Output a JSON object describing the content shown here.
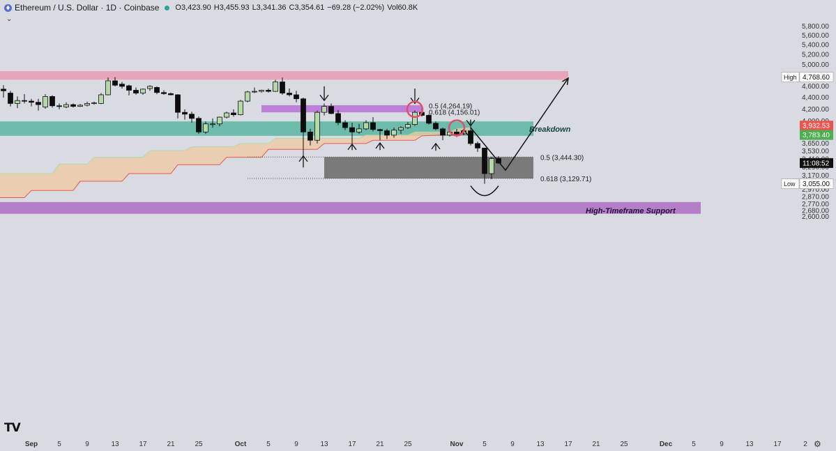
{
  "header": {
    "symbol": "Ethereum / U.S. Dollar · 1D · Coinbase",
    "open": "O3,423.90",
    "high": "H3,455.93",
    "low": "L3,341.36",
    "close": "C3,354.61",
    "change": "−69.28 (−2.02%)",
    "volume": "Vol60.8K",
    "coin_icon": "ethereum-icon",
    "collapse_icon": "chevron-down-icon"
  },
  "logo": "TV",
  "settings_icon": "gear-icon",
  "colors": {
    "up": "#b5d8a8",
    "down": "#0d0d0d",
    "resistance_zone": "#e8a4b8",
    "breakdown_zone": "#5bb5a0",
    "htf_support": "#b47fc9",
    "fib_box": "#7a7a7a",
    "cloud": "#f0c9a0",
    "cloud_edge": "#ef5350",
    "current_price_label": "#ef5350",
    "green_label": "#4caf50"
  },
  "chart_data": {
    "type": "candlestick",
    "title": "Ethereum / U.S. Dollar · 1D · Coinbase",
    "ylim": [
      2550,
      5850
    ],
    "y_ticks": [
      2600,
      2680,
      2770,
      2870,
      2970,
      3055,
      3170,
      3290,
      3410,
      3530,
      3650,
      3783.4,
      4000,
      4200,
      4400,
      4600,
      4800,
      5000,
      5200,
      5400,
      5600,
      5800
    ],
    "y_tick_labels": [
      "2,600.00",
      "2,680.00",
      "2,770.00",
      "2,870.00",
      "2,970.00",
      "",
      "3,170.00",
      "3,290.00",
      "3,410.00",
      "3,530.00",
      "3,650.00",
      "",
      "4,000.00",
      "4,200.00",
      "4,400.00",
      "4,600.00",
      "",
      "5,000.00",
      "5,200.00",
      "5,400.00",
      "5,600.00",
      "5,800.00"
    ],
    "x_labels": [
      "Sep",
      "5",
      "9",
      "13",
      "17",
      "21",
      "25",
      "Oct",
      "5",
      "9",
      "13",
      "17",
      "21",
      "25",
      "Nov",
      "5",
      "9",
      "13",
      "17",
      "21",
      "25",
      "Dec",
      "5",
      "9",
      "13",
      "17",
      "2"
    ],
    "x_label_days": [
      0,
      4,
      8,
      12,
      16,
      20,
      24,
      30,
      34,
      38,
      42,
      46,
      50,
      54,
      61,
      65,
      69,
      73,
      77,
      81,
      85,
      91,
      95,
      99,
      103,
      107,
      111
    ],
    "price_labels": [
      {
        "text": "High",
        "value_text": "4,768.60",
        "value": 4768.6,
        "style": "outline"
      },
      {
        "text": "",
        "value_text": "3,932.53",
        "value": 3932.53,
        "style": "red"
      },
      {
        "text": "",
        "value_text": "3,783.40",
        "value": 3783.4,
        "style": "green"
      },
      {
        "text": "",
        "value_text": "11:08:52",
        "value": 3354.61,
        "style": "dark"
      },
      {
        "text": "Low",
        "value_text": "3,055.00",
        "value": 3055,
        "style": "outline"
      }
    ],
    "candles": [
      {
        "d": -4,
        "o": 4550,
        "h": 4620,
        "l": 4400,
        "c": 4520
      },
      {
        "d": -3,
        "o": 4480,
        "h": 4520,
        "l": 4250,
        "c": 4300
      },
      {
        "d": -2,
        "o": 4300,
        "h": 4420,
        "l": 4220,
        "c": 4350
      },
      {
        "d": -1,
        "o": 4350,
        "h": 4460,
        "l": 4300,
        "c": 4340
      },
      {
        "d": 0,
        "o": 4340,
        "h": 4380,
        "l": 4250,
        "c": 4320
      },
      {
        "d": 1,
        "o": 4320,
        "h": 4380,
        "l": 4180,
        "c": 4280
      },
      {
        "d": 2,
        "o": 4240,
        "h": 4460,
        "l": 4210,
        "c": 4420
      },
      {
        "d": 3,
        "o": 4420,
        "h": 4440,
        "l": 4230,
        "c": 4260
      },
      {
        "d": 4,
        "o": 4260,
        "h": 4300,
        "l": 4200,
        "c": 4250
      },
      {
        "d": 5,
        "o": 4240,
        "h": 4320,
        "l": 4220,
        "c": 4280
      },
      {
        "d": 6,
        "o": 4280,
        "h": 4300,
        "l": 4230,
        "c": 4250
      },
      {
        "d": 7,
        "o": 4250,
        "h": 4290,
        "l": 4240,
        "c": 4270
      },
      {
        "d": 8,
        "o": 4270,
        "h": 4330,
        "l": 4250,
        "c": 4300
      },
      {
        "d": 9,
        "o": 4300,
        "h": 4330,
        "l": 4280,
        "c": 4310
      },
      {
        "d": 10,
        "o": 4300,
        "h": 4480,
        "l": 4290,
        "c": 4450
      },
      {
        "d": 11,
        "o": 4450,
        "h": 4760,
        "l": 4440,
        "c": 4700
      },
      {
        "d": 12,
        "o": 4700,
        "h": 4768.6,
        "l": 4600,
        "c": 4620
      },
      {
        "d": 13,
        "o": 4640,
        "h": 4680,
        "l": 4560,
        "c": 4600
      },
      {
        "d": 14,
        "o": 4610,
        "h": 4630,
        "l": 4440,
        "c": 4530
      },
      {
        "d": 15,
        "o": 4530,
        "h": 4580,
        "l": 4450,
        "c": 4480
      },
      {
        "d": 16,
        "o": 4480,
        "h": 4560,
        "l": 4450,
        "c": 4550
      },
      {
        "d": 17,
        "o": 4560,
        "h": 4620,
        "l": 4520,
        "c": 4600
      },
      {
        "d": 18,
        "o": 4580,
        "h": 4600,
        "l": 4460,
        "c": 4490
      },
      {
        "d": 19,
        "o": 4490,
        "h": 4530,
        "l": 4450,
        "c": 4470
      },
      {
        "d": 20,
        "o": 4470,
        "h": 4490,
        "l": 4440,
        "c": 4450
      },
      {
        "d": 21,
        "o": 4450,
        "h": 4460,
        "l": 4050,
        "c": 4150
      },
      {
        "d": 22,
        "o": 4150,
        "h": 4200,
        "l": 4030,
        "c": 4120
      },
      {
        "d": 23,
        "o": 4120,
        "h": 4160,
        "l": 3980,
        "c": 4050
      },
      {
        "d": 24,
        "o": 4050,
        "h": 4080,
        "l": 3800,
        "c": 3830
      },
      {
        "d": 25,
        "o": 3830,
        "h": 4000,
        "l": 3800,
        "c": 3960
      },
      {
        "d": 26,
        "o": 3960,
        "h": 4050,
        "l": 3900,
        "c": 3960
      },
      {
        "d": 27,
        "o": 3960,
        "h": 4080,
        "l": 3920,
        "c": 4070
      },
      {
        "d": 28,
        "o": 4070,
        "h": 4160,
        "l": 4050,
        "c": 4140
      },
      {
        "d": 29,
        "o": 4140,
        "h": 4200,
        "l": 4080,
        "c": 4110
      },
      {
        "d": 30,
        "o": 4110,
        "h": 4360,
        "l": 4100,
        "c": 4340
      },
      {
        "d": 31,
        "o": 4340,
        "h": 4520,
        "l": 4320,
        "c": 4500
      },
      {
        "d": 32,
        "o": 4500,
        "h": 4580,
        "l": 4480,
        "c": 4510
      },
      {
        "d": 33,
        "o": 4510,
        "h": 4540,
        "l": 4490,
        "c": 4530
      },
      {
        "d": 34,
        "o": 4530,
        "h": 4560,
        "l": 4490,
        "c": 4510
      },
      {
        "d": 35,
        "o": 4510,
        "h": 4720,
        "l": 4500,
        "c": 4680
      },
      {
        "d": 36,
        "o": 4680,
        "h": 4760,
        "l": 4450,
        "c": 4480
      },
      {
        "d": 37,
        "o": 4480,
        "h": 4560,
        "l": 4420,
        "c": 4450
      },
      {
        "d": 38,
        "o": 4450,
        "h": 4520,
        "l": 4320,
        "c": 4380
      },
      {
        "d": 39,
        "o": 4380,
        "h": 4400,
        "l": 3450,
        "c": 3830
      },
      {
        "d": 40,
        "o": 3830,
        "h": 3880,
        "l": 3620,
        "c": 3700
      },
      {
        "d": 41,
        "o": 3700,
        "h": 4180,
        "l": 3650,
        "c": 4150
      },
      {
        "d": 42,
        "o": 4150,
        "h": 4300,
        "l": 4100,
        "c": 4250
      },
      {
        "d": 43,
        "o": 4250,
        "h": 4300,
        "l": 4120,
        "c": 4130
      },
      {
        "d": 44,
        "o": 4130,
        "h": 4190,
        "l": 3940,
        "c": 3980
      },
      {
        "d": 45,
        "o": 3980,
        "h": 4020,
        "l": 3860,
        "c": 3900
      },
      {
        "d": 46,
        "o": 3900,
        "h": 3980,
        "l": 3650,
        "c": 3830
      },
      {
        "d": 47,
        "o": 3830,
        "h": 3960,
        "l": 3800,
        "c": 3880
      },
      {
        "d": 48,
        "o": 3880,
        "h": 4020,
        "l": 3860,
        "c": 3980
      },
      {
        "d": 49,
        "o": 3980,
        "h": 4070,
        "l": 3840,
        "c": 3870
      },
      {
        "d": 50,
        "o": 3870,
        "h": 3880,
        "l": 3700,
        "c": 3850
      },
      {
        "d": 51,
        "o": 3850,
        "h": 3880,
        "l": 3720,
        "c": 3780
      },
      {
        "d": 52,
        "o": 3780,
        "h": 3900,
        "l": 3740,
        "c": 3860
      },
      {
        "d": 53,
        "o": 3860,
        "h": 3920,
        "l": 3800,
        "c": 3900
      },
      {
        "d": 54,
        "o": 3900,
        "h": 3990,
        "l": 3880,
        "c": 3950
      },
      {
        "d": 55,
        "o": 3950,
        "h": 4180,
        "l": 3930,
        "c": 4150
      },
      {
        "d": 56,
        "o": 4150,
        "h": 4240,
        "l": 4080,
        "c": 4100
      },
      {
        "d": 57,
        "o": 4100,
        "h": 4120,
        "l": 3950,
        "c": 3970
      },
      {
        "d": 58,
        "o": 3970,
        "h": 4000,
        "l": 3860,
        "c": 3880
      },
      {
        "d": 59,
        "o": 3880,
        "h": 3900,
        "l": 3700,
        "c": 3780
      },
      {
        "d": 60,
        "o": 3780,
        "h": 3860,
        "l": 3760,
        "c": 3830
      },
      {
        "d": 61,
        "o": 3830,
        "h": 3880,
        "l": 3750,
        "c": 3800
      },
      {
        "d": 62,
        "o": 3800,
        "h": 3860,
        "l": 3780,
        "c": 3850
      },
      {
        "d": 63,
        "o": 3850,
        "h": 3940,
        "l": 3620,
        "c": 3650
      },
      {
        "d": 64,
        "o": 3650,
        "h": 3680,
        "l": 3520,
        "c": 3580
      },
      {
        "d": 65,
        "o": 3580,
        "h": 3580,
        "l": 3055,
        "c": 3200
      },
      {
        "d": 66,
        "o": 3200,
        "h": 3450,
        "l": 3120,
        "c": 3420
      },
      {
        "d": 67,
        "o": 3423.9,
        "h": 3455.93,
        "l": 3341.36,
        "c": 3354.61
      }
    ],
    "zones": [
      {
        "name": "resistance",
        "x0": -5,
        "x1": 77,
        "y0": 4720,
        "y1": 4880
      },
      {
        "name": "fib-zone-top",
        "x0": 33,
        "x1": 56,
        "y0": 4150,
        "y1": 4270
      },
      {
        "name": "breakdown",
        "x0": -5,
        "x1": 72,
        "y0": 3770,
        "y1": 4000
      },
      {
        "name": "fib-box",
        "x0": 42,
        "x1": 72,
        "y0": 3129.71,
        "y1": 3444.3
      },
      {
        "name": "htf-support",
        "x0": -5,
        "x1": 96,
        "y0": 2640,
        "y1": 2800
      }
    ],
    "annotations": [
      {
        "text": "0.5 (4,264.19)",
        "d": 57,
        "y": 4264.19
      },
      {
        "text": "0.618 (4,156.01)",
        "d": 57,
        "y": 4156.01
      },
      {
        "text": "0.5 (3,444.30)",
        "d": 73,
        "y": 3444.3
      },
      {
        "text": "0.618 (3,129.71)",
        "d": 73,
        "y": 3129.71
      },
      {
        "text": "Breakdown",
        "d": 67,
        "y": 3880
      },
      {
        "text": "High-Timeframe Support",
        "d": 76,
        "y": 2720
      }
    ],
    "projection": [
      {
        "d": 63,
        "y": 3900
      },
      {
        "d": 68,
        "y": 3250
      },
      {
        "d": 77,
        "y": 4750
      }
    ],
    "cloud_top": [
      {
        "d": -5,
        "y": 3200
      },
      {
        "d": 3,
        "y": 3200
      },
      {
        "d": 4,
        "y": 3340
      },
      {
        "d": 8,
        "y": 3340
      },
      {
        "d": 9,
        "y": 3440
      },
      {
        "d": 16,
        "y": 3440
      },
      {
        "d": 17,
        "y": 3540
      },
      {
        "d": 22,
        "y": 3540
      },
      {
        "d": 23,
        "y": 3600
      },
      {
        "d": 29,
        "y": 3600
      },
      {
        "d": 30,
        "y": 3650
      },
      {
        "d": 34,
        "y": 3650
      },
      {
        "d": 35,
        "y": 3730
      },
      {
        "d": 47,
        "y": 3730
      },
      {
        "d": 48,
        "y": 3780
      },
      {
        "d": 54,
        "y": 3780
      },
      {
        "d": 55,
        "y": 3830
      },
      {
        "d": 60,
        "y": 3830
      },
      {
        "d": 61,
        "y": 3880
      },
      {
        "d": 63,
        "y": 3900
      }
    ],
    "cloud_bottom": [
      {
        "d": -5,
        "y": 2860
      },
      {
        "d": -1,
        "y": 2860
      },
      {
        "d": 0,
        "y": 2960
      },
      {
        "d": 6,
        "y": 2960
      },
      {
        "d": 7,
        "y": 3090
      },
      {
        "d": 13,
        "y": 3090
      },
      {
        "d": 14,
        "y": 3200
      },
      {
        "d": 20,
        "y": 3200
      },
      {
        "d": 21,
        "y": 3330
      },
      {
        "d": 27,
        "y": 3330
      },
      {
        "d": 28,
        "y": 3440
      },
      {
        "d": 33,
        "y": 3440
      },
      {
        "d": 34,
        "y": 3560
      },
      {
        "d": 41,
        "y": 3560
      },
      {
        "d": 42,
        "y": 3650
      },
      {
        "d": 48,
        "y": 3650
      },
      {
        "d": 49,
        "y": 3700
      },
      {
        "d": 55,
        "y": 3700
      },
      {
        "d": 56,
        "y": 3770
      },
      {
        "d": 63,
        "y": 3800
      }
    ],
    "arrows": [
      {
        "dir": "down",
        "d": 42,
        "y0": 4600,
        "y1": 4350
      },
      {
        "dir": "down",
        "d": 55,
        "y0": 4560,
        "y1": 4300
      },
      {
        "dir": "down",
        "d": 63,
        "y0": 4030,
        "y1": 3930
      },
      {
        "dir": "up",
        "d": 39,
        "y0": 3290,
        "y1": 3460
      },
      {
        "dir": "up",
        "d": 46,
        "y0": 3550,
        "y1": 3640
      },
      {
        "dir": "up",
        "d": 50,
        "y0": 3550,
        "y1": 3660
      },
      {
        "dir": "up",
        "d": 58,
        "y0": 3540,
        "y1": 3650
      },
      {
        "dir": "up",
        "d": 62,
        "y0": 3790,
        "y1": 3870
      }
    ],
    "circles": [
      {
        "d": 55,
        "y": 4200
      },
      {
        "d": 61,
        "y": 3895
      }
    ],
    "grid": false,
    "legend": "none"
  }
}
